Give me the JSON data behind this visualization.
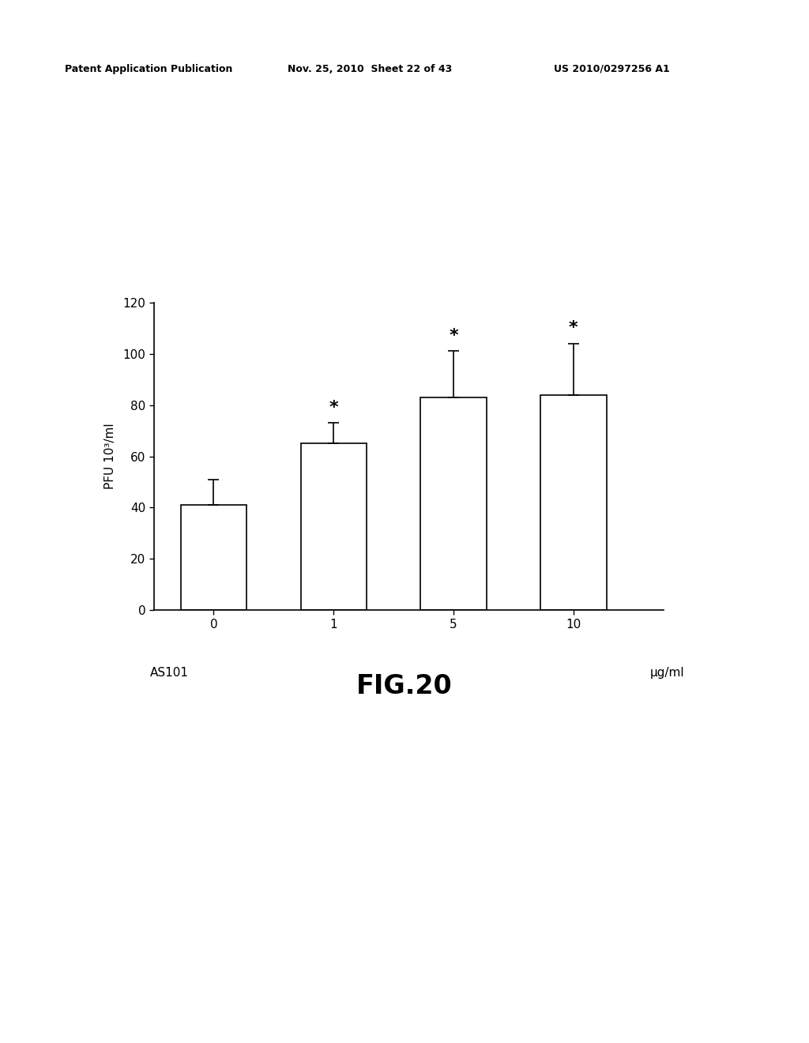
{
  "categories": [
    "0",
    "1",
    "5",
    "10"
  ],
  "values": [
    41,
    65,
    83,
    84
  ],
  "errors": [
    10,
    8,
    18,
    20
  ],
  "bar_positions": [
    1,
    2,
    3,
    4
  ],
  "bar_width": 0.55,
  "ylim": [
    0,
    120
  ],
  "yticks": [
    0,
    20,
    40,
    60,
    80,
    100,
    120
  ],
  "xlabel_as101": "AS101",
  "xlabel_unit": "μg/ml",
  "ylabel": "PFU 10³/ml",
  "asterisk_bars": [
    1,
    2,
    3
  ],
  "header_left": "Patent Application Publication",
  "header_mid": "Nov. 25, 2010  Sheet 22 of 43",
  "header_right": "US 2010/0297256 A1",
  "figure_label": "FIG.20",
  "bar_color": "#ffffff",
  "bar_edgecolor": "#000000",
  "background_color": "#ffffff",
  "errorbar_color": "#000000",
  "asterisk_color": "#000000",
  "header_fontsize": 9,
  "tick_fontsize": 11,
  "ylabel_fontsize": 11,
  "figlabel_fontsize": 24,
  "asterisk_fontsize": 16
}
